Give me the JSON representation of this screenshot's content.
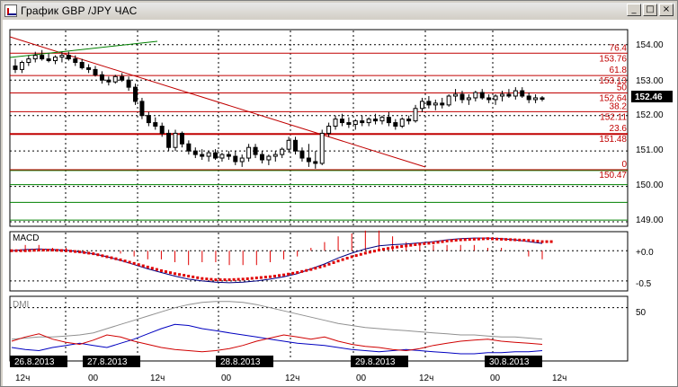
{
  "window": {
    "title": "График GBP /JPY  ЧАС",
    "minimize_label": "_",
    "maximize_label": "□",
    "close_label": "×"
  },
  "colors": {
    "fib_red": "#c00000",
    "trend_green": "#008000",
    "macd_line": "#000080",
    "signal_dots": "#e00000",
    "dmi_red": "#d00000",
    "dmi_blue": "#0000c0",
    "adx_gray": "#909090",
    "price_badge_bg": "#000000"
  },
  "price_panel": {
    "current_price": "152.46",
    "axis_ticks": [
      "154.00",
      "153.00",
      "152.00",
      "151.00",
      "150.00",
      "149.00"
    ],
    "fib_labels": [
      "76.4",
      "153.76",
      "61.8",
      "153.13",
      "50",
      "152.64",
      "38.2",
      "152.11",
      "23.6",
      "151.48",
      "0",
      "150.47"
    ]
  },
  "macd_panel": {
    "title": "MACD",
    "axis_ticks": [
      "+0.0",
      "-0.5"
    ]
  },
  "dmi_panel": {
    "title": "DMI",
    "axis_ticks": [
      "50"
    ]
  },
  "time_axis": {
    "date_badges": [
      "26.8.2013",
      "27.8.2013",
      "28.8.2013",
      "29.8.2013",
      "30.8.2013"
    ],
    "hour_ticks": [
      "12ч",
      "00",
      "12ч",
      "00",
      "12ч",
      "00",
      "12ч",
      "00",
      "12ч"
    ]
  },
  "chart_data": {
    "type": "candlestick",
    "ylim": [
      148.9,
      154.4
    ],
    "candles": [
      [
        153.4,
        153.6,
        153.2,
        153.3
      ],
      [
        153.3,
        153.55,
        153.2,
        153.5
      ],
      [
        153.5,
        153.7,
        153.4,
        153.6
      ],
      [
        153.6,
        153.8,
        153.5,
        153.7
      ],
      [
        153.7,
        153.85,
        153.55,
        153.6
      ],
      [
        153.6,
        153.75,
        153.5,
        153.55
      ],
      [
        153.55,
        153.7,
        153.45,
        153.65
      ],
      [
        153.65,
        153.8,
        153.5,
        153.7
      ],
      [
        153.7,
        153.8,
        153.55,
        153.6
      ],
      [
        153.6,
        153.7,
        153.4,
        153.5
      ],
      [
        153.5,
        153.6,
        153.3,
        153.35
      ],
      [
        153.35,
        153.45,
        153.2,
        153.3
      ],
      [
        153.3,
        153.4,
        153.1,
        153.15
      ],
      [
        153.15,
        153.25,
        152.9,
        153.0
      ],
      [
        153.0,
        153.1,
        152.85,
        152.95
      ],
      [
        152.95,
        153.15,
        152.9,
        153.1
      ],
      [
        153.1,
        153.2,
        152.95,
        153.0
      ],
      [
        153.0,
        153.1,
        152.7,
        152.8
      ],
      [
        152.8,
        152.9,
        152.3,
        152.4
      ],
      [
        152.4,
        152.5,
        151.9,
        152.0
      ],
      [
        152.0,
        152.1,
        151.7,
        151.8
      ],
      [
        151.8,
        151.95,
        151.6,
        151.7
      ],
      [
        151.7,
        151.8,
        151.4,
        151.5
      ],
      [
        151.5,
        151.6,
        151.0,
        151.1
      ],
      [
        151.1,
        151.6,
        151.0,
        151.5
      ],
      [
        151.5,
        151.55,
        151.1,
        151.2
      ],
      [
        151.2,
        151.3,
        150.9,
        151.0
      ],
      [
        151.0,
        151.1,
        150.8,
        150.9
      ],
      [
        150.9,
        151.05,
        150.75,
        150.85
      ],
      [
        150.85,
        151.0,
        150.7,
        150.95
      ],
      [
        150.95,
        151.05,
        150.75,
        150.8
      ],
      [
        150.8,
        150.95,
        150.7,
        150.9
      ],
      [
        150.9,
        151.0,
        150.75,
        150.85
      ],
      [
        150.85,
        151.0,
        150.6,
        150.7
      ],
      [
        150.7,
        150.9,
        150.55,
        150.8
      ],
      [
        150.8,
        151.2,
        150.7,
        151.1
      ],
      [
        151.1,
        151.2,
        150.8,
        150.9
      ],
      [
        150.9,
        151.0,
        150.65,
        150.75
      ],
      [
        150.75,
        150.9,
        150.6,
        150.85
      ],
      [
        150.85,
        151.0,
        150.7,
        150.9
      ],
      [
        150.9,
        151.1,
        150.8,
        151.05
      ],
      [
        151.05,
        151.4,
        150.95,
        151.3
      ],
      [
        151.3,
        151.4,
        150.9,
        151.0
      ],
      [
        151.0,
        151.1,
        150.7,
        150.8
      ],
      [
        150.8,
        151.2,
        150.55,
        150.7
      ],
      [
        150.7,
        151.0,
        150.5,
        150.65
      ],
      [
        150.65,
        151.6,
        150.6,
        151.5
      ],
      [
        151.5,
        151.8,
        151.4,
        151.7
      ],
      [
        151.7,
        152.0,
        151.6,
        151.9
      ],
      [
        151.9,
        152.05,
        151.7,
        151.8
      ],
      [
        151.8,
        151.95,
        151.65,
        151.75
      ],
      [
        151.75,
        151.9,
        151.6,
        151.85
      ],
      [
        151.85,
        152.0,
        151.7,
        151.8
      ],
      [
        151.8,
        151.95,
        151.7,
        151.9
      ],
      [
        151.9,
        152.05,
        151.75,
        151.85
      ],
      [
        151.85,
        152.0,
        151.75,
        151.95
      ],
      [
        151.95,
        152.1,
        151.7,
        151.8
      ],
      [
        151.8,
        151.9,
        151.6,
        151.7
      ],
      [
        151.7,
        151.95,
        151.65,
        151.9
      ],
      [
        151.9,
        152.0,
        151.75,
        151.85
      ],
      [
        151.85,
        152.3,
        151.8,
        152.2
      ],
      [
        152.2,
        152.5,
        152.1,
        152.4
      ],
      [
        152.4,
        152.55,
        152.2,
        152.3
      ],
      [
        152.3,
        152.45,
        152.15,
        152.35
      ],
      [
        152.35,
        152.5,
        152.2,
        152.3
      ],
      [
        152.3,
        152.6,
        152.25,
        152.55
      ],
      [
        152.55,
        152.75,
        152.4,
        152.6
      ],
      [
        152.6,
        152.7,
        152.35,
        152.45
      ],
      [
        152.45,
        152.6,
        152.3,
        152.5
      ],
      [
        152.5,
        152.7,
        152.4,
        152.65
      ],
      [
        152.65,
        152.75,
        152.45,
        152.5
      ],
      [
        152.5,
        152.6,
        152.35,
        152.45
      ],
      [
        152.45,
        152.6,
        152.3,
        152.55
      ],
      [
        152.55,
        152.7,
        152.4,
        152.6
      ],
      [
        152.6,
        152.75,
        152.5,
        152.55
      ],
      [
        152.55,
        152.8,
        152.45,
        152.7
      ],
      [
        152.7,
        152.8,
        152.5,
        152.55
      ],
      [
        152.55,
        152.65,
        152.35,
        152.45
      ],
      [
        152.45,
        152.6,
        152.35,
        152.5
      ],
      [
        152.5,
        152.55,
        152.4,
        152.46
      ]
    ],
    "macd": [
      0.0,
      0.02,
      0.03,
      0.02,
      0.01,
      -0.02,
      -0.05,
      -0.1,
      -0.16,
      -0.23,
      -0.3,
      -0.36,
      -0.42,
      -0.47,
      -0.5,
      -0.52,
      -0.53,
      -0.52,
      -0.5,
      -0.47,
      -0.43,
      -0.38,
      -0.3,
      -0.22,
      -0.12,
      -0.04,
      0.03,
      0.08,
      0.1,
      0.11,
      0.13,
      0.15,
      0.18,
      0.2,
      0.21,
      0.21,
      0.2,
      0.18,
      0.15,
      0.12
    ],
    "signal": [
      0.0,
      0.0,
      0.01,
      0.01,
      0.0,
      -0.02,
      -0.05,
      -0.1,
      -0.15,
      -0.21,
      -0.27,
      -0.33,
      -0.38,
      -0.42,
      -0.46,
      -0.48,
      -0.48,
      -0.47,
      -0.45,
      -0.43,
      -0.4,
      -0.36,
      -0.31,
      -0.25,
      -0.17,
      -0.1,
      -0.04,
      0.01,
      0.05,
      0.08,
      0.11,
      0.13,
      0.16,
      0.18,
      0.19,
      0.2,
      0.19,
      0.18,
      0.17,
      0.15
    ],
    "dmi_plus": [
      18,
      22,
      25,
      20,
      17,
      15,
      19,
      24,
      22,
      18,
      15,
      12,
      10,
      9,
      8,
      9,
      11,
      14,
      18,
      21,
      24,
      22,
      20,
      22,
      18,
      15,
      13,
      12,
      10,
      9,
      11,
      14,
      16,
      18,
      19,
      20,
      18,
      17,
      16,
      15
    ],
    "dmi_minus": [
      12,
      10,
      9,
      12,
      14,
      16,
      14,
      12,
      16,
      20,
      25,
      30,
      34,
      33,
      30,
      28,
      26,
      24,
      22,
      20,
      18,
      16,
      15,
      14,
      12,
      10,
      9,
      8,
      9,
      10,
      9,
      8,
      7,
      6,
      6,
      7,
      7,
      8,
      8,
      9
    ],
    "adx": [
      20,
      21,
      22,
      22,
      23,
      24,
      26,
      30,
      34,
      38,
      42,
      46,
      50,
      53,
      55,
      56,
      56,
      55,
      53,
      50,
      47,
      44,
      41,
      38,
      35,
      33,
      31,
      30,
      29,
      28,
      27,
      26,
      25,
      24,
      24,
      23,
      22,
      22,
      21,
      20
    ]
  }
}
